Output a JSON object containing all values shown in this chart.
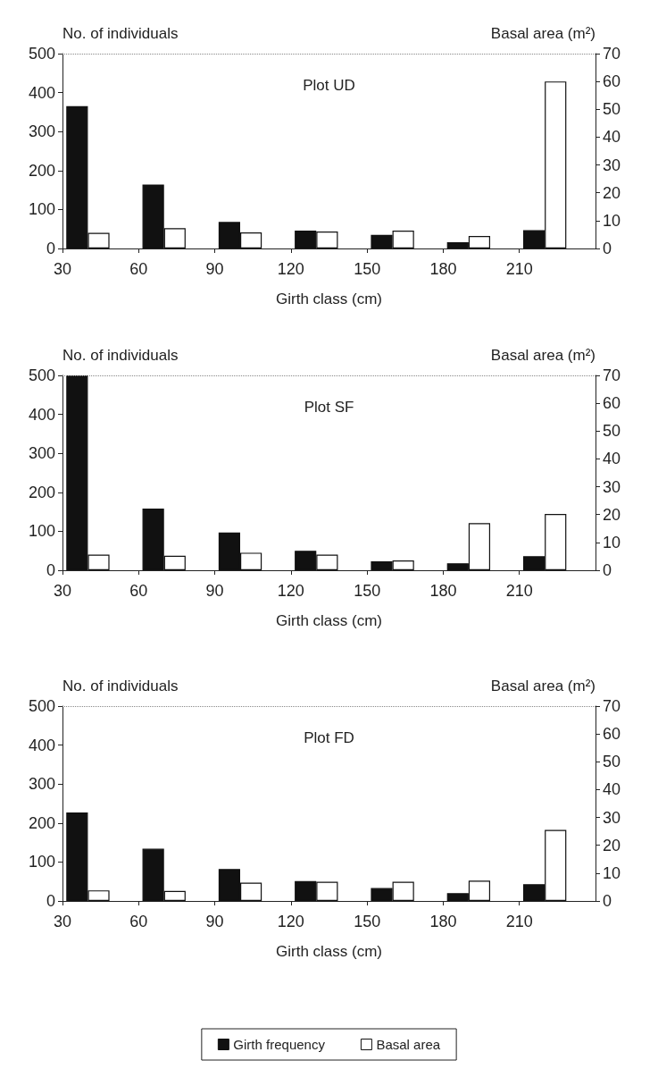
{
  "chart_data": [
    {
      "type": "bar",
      "title": "Plot UD",
      "xlabel": "Girth class (cm)",
      "ylabel": "No. of individuals",
      "y2label": "Basal area (m²)",
      "x": [
        40,
        70,
        100,
        130,
        160,
        190,
        220
      ],
      "series": [
        {
          "color": "#111111",
          "values": [
            365,
            164,
            68,
            46,
            35,
            16,
            47
          ]
        },
        {
          "color": "#ffffff",
          "axis": "y2",
          "values": [
            5.6,
            7.3,
            5.8,
            6.1,
            6.4,
            4.5,
            60
          ]
        }
      ],
      "xlim": [
        30,
        240
      ],
      "xticks": [
        30,
        60,
        90,
        120,
        150,
        180,
        210
      ],
      "ylim": [
        0,
        500
      ],
      "yticks": [
        0,
        100,
        200,
        300,
        400,
        500
      ],
      "y2lim": [
        0,
        70
      ],
      "y2ticks": [
        0,
        10,
        20,
        30,
        40,
        50,
        60,
        70
      ],
      "grid": false,
      "legend": false
    },
    {
      "type": "bar",
      "title": "Plot SF",
      "xlabel": "Girth class (cm)",
      "ylabel": "No. of individuals",
      "y2label": "Basal area (m²)",
      "x": [
        40,
        70,
        100,
        130,
        160,
        190,
        220
      ],
      "series": [
        {
          "color": "#111111",
          "values": [
            500,
            158,
            97,
            50,
            23,
            18,
            36
          ]
        },
        {
          "color": "#ffffff",
          "axis": "y2",
          "values": [
            5.6,
            5.2,
            6.3,
            5.6,
            3.5,
            16.9,
            20.2
          ]
        }
      ],
      "xlim": [
        30,
        240
      ],
      "xticks": [
        30,
        60,
        90,
        120,
        150,
        180,
        210
      ],
      "ylim": [
        0,
        500
      ],
      "yticks": [
        0,
        100,
        200,
        300,
        400,
        500
      ],
      "y2lim": [
        0,
        70
      ],
      "y2ticks": [
        0,
        10,
        20,
        30,
        40,
        50,
        60,
        70
      ],
      "grid": false,
      "legend": false
    },
    {
      "type": "bar",
      "title": "Plot FD",
      "xlabel": "Girth class (cm)",
      "ylabel": "No. of individuals",
      "y2label": "Basal area (m²)",
      "x": [
        40,
        70,
        100,
        130,
        160,
        190,
        220
      ],
      "series": [
        {
          "name": "Girth frequency",
          "color": "#111111",
          "values": [
            227,
            134,
            82,
            51,
            33,
            20,
            43
          ]
        },
        {
          "name": "Basal area",
          "color": "#ffffff",
          "axis": "y2",
          "values": [
            3.8,
            3.6,
            6.6,
            6.9,
            6.9,
            7.3,
            25.5
          ]
        }
      ],
      "xlim": [
        30,
        240
      ],
      "xticks": [
        30,
        60,
        90,
        120,
        150,
        180,
        210
      ],
      "ylim": [
        0,
        500
      ],
      "yticks": [
        0,
        100,
        200,
        300,
        400,
        500
      ],
      "y2lim": [
        0,
        70
      ],
      "y2ticks": [
        0,
        10,
        20,
        30,
        40,
        50,
        60,
        70
      ],
      "grid": false,
      "legend": "bottom"
    }
  ]
}
